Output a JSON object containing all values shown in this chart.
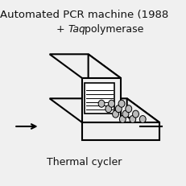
{
  "bg_color": "#f0f0f0",
  "title": "Automated PCR machine (1988",
  "subtitle_normal": "+ ",
  "subtitle_italic": "Taq",
  "subtitle_rest": " polymerase",
  "label": "Thermal cycler",
  "title_fontsize": 9.5,
  "subtitle_fontsize": 9,
  "label_fontsize": 9,
  "text_color": "#111111",
  "lw": 1.5
}
